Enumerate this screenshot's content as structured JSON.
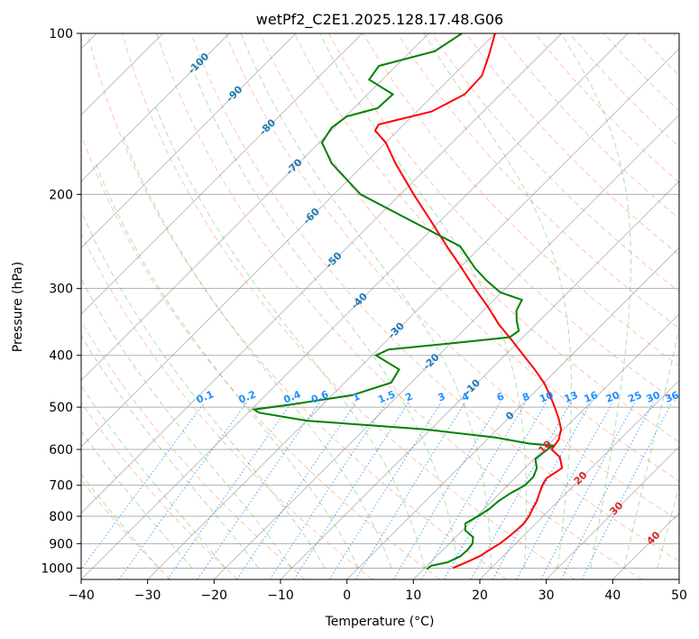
{
  "chart_data": {
    "type": "line",
    "subtype": "skew-t log-p diagram",
    "title": "wetPf2_C2E1.2025.128.17.48.G06",
    "xlabel": "Temperature (°C)",
    "ylabel": "Pressure (hPa)",
    "xlim": [
      -40,
      50
    ],
    "ylim": [
      1050,
      100
    ],
    "y_scale": "log",
    "x_ticks": [
      -40,
      -30,
      -20,
      -10,
      0,
      10,
      20,
      30,
      40,
      50
    ],
    "y_ticks": [
      100,
      200,
      300,
      400,
      500,
      600,
      700,
      800,
      900,
      1000
    ],
    "grid": true,
    "series": [
      {
        "role": "temperature",
        "color": "#ff0000",
        "points": [
          {
            "p": 1000,
            "t": 14.2
          },
          {
            "p": 975,
            "t": 15.4
          },
          {
            "p": 950,
            "t": 16.5
          },
          {
            "p": 925,
            "t": 17.0
          },
          {
            "p": 900,
            "t": 17.6
          },
          {
            "p": 875,
            "t": 17.9
          },
          {
            "p": 850,
            "t": 18.1
          },
          {
            "p": 825,
            "t": 18.2
          },
          {
            "p": 800,
            "t": 17.9
          },
          {
            "p": 775,
            "t": 17.3
          },
          {
            "p": 750,
            "t": 16.8
          },
          {
            "p": 725,
            "t": 16.0
          },
          {
            "p": 700,
            "t": 15.2
          },
          {
            "p": 680,
            "t": 14.8
          },
          {
            "p": 650,
            "t": 15.6
          },
          {
            "p": 620,
            "t": 13.6
          },
          {
            "p": 600,
            "t": 11.2
          },
          {
            "p": 575,
            "t": 10.8
          },
          {
            "p": 550,
            "t": 9.6
          },
          {
            "p": 525,
            "t": 7.6
          },
          {
            "p": 500,
            "t": 5.3
          },
          {
            "p": 475,
            "t": 2.8
          },
          {
            "p": 450,
            "t": 0.0
          },
          {
            "p": 425,
            "t": -3.4
          },
          {
            "p": 400,
            "t": -7.2
          },
          {
            "p": 375,
            "t": -11.2
          },
          {
            "p": 350,
            "t": -15.6
          },
          {
            "p": 325,
            "t": -19.8
          },
          {
            "p": 300,
            "t": -24.6
          },
          {
            "p": 275,
            "t": -29.6
          },
          {
            "p": 250,
            "t": -35.2
          },
          {
            "p": 225,
            "t": -41.2
          },
          {
            "p": 200,
            "t": -48.0
          },
          {
            "p": 175,
            "t": -55.4
          },
          {
            "p": 160,
            "t": -60.0
          },
          {
            "p": 152,
            "t": -63.4
          },
          {
            "p": 148,
            "t": -63.8
          },
          {
            "p": 140,
            "t": -57.8
          },
          {
            "p": 130,
            "t": -55.4
          },
          {
            "p": 120,
            "t": -55.6
          },
          {
            "p": 110,
            "t": -57.6
          },
          {
            "p": 100,
            "t": -60.0
          }
        ]
      },
      {
        "role": "dewpoint",
        "color": "#008000",
        "points": [
          {
            "p": 1005,
            "t": 10.5
          },
          {
            "p": 990,
            "t": 10.6
          },
          {
            "p": 975,
            "t": 12.6
          },
          {
            "p": 950,
            "t": 13.6
          },
          {
            "p": 925,
            "t": 13.7
          },
          {
            "p": 900,
            "t": 13.5
          },
          {
            "p": 875,
            "t": 12.6
          },
          {
            "p": 850,
            "t": 10.4
          },
          {
            "p": 825,
            "t": 9.4
          },
          {
            "p": 800,
            "t": 10.2
          },
          {
            "p": 775,
            "t": 10.8
          },
          {
            "p": 750,
            "t": 11.0
          },
          {
            "p": 725,
            "t": 11.6
          },
          {
            "p": 700,
            "t": 12.6
          },
          {
            "p": 675,
            "t": 12.6
          },
          {
            "p": 650,
            "t": 11.8
          },
          {
            "p": 625,
            "t": 10.2
          },
          {
            "p": 600,
            "t": 10.6
          },
          {
            "p": 590,
            "t": 10.8
          },
          {
            "p": 585,
            "t": 7.0
          },
          {
            "p": 570,
            "t": 1.0
          },
          {
            "p": 550,
            "t": -11.0
          },
          {
            "p": 530,
            "t": -30.0
          },
          {
            "p": 512,
            "t": -38.4
          },
          {
            "p": 505,
            "t": -39.6
          },
          {
            "p": 495,
            "t": -35.0
          },
          {
            "p": 475,
            "t": -27.0
          },
          {
            "p": 450,
            "t": -23.0
          },
          {
            "p": 425,
            "t": -23.8
          },
          {
            "p": 400,
            "t": -29.4
          },
          {
            "p": 390,
            "t": -28.4
          },
          {
            "p": 380,
            "t": -20.0
          },
          {
            "p": 370,
            "t": -12.0
          },
          {
            "p": 360,
            "t": -11.6
          },
          {
            "p": 345,
            "t": -13.4
          },
          {
            "p": 330,
            "t": -15.0
          },
          {
            "p": 315,
            "t": -15.8
          },
          {
            "p": 305,
            "t": -20.2
          },
          {
            "p": 290,
            "t": -24.0
          },
          {
            "p": 275,
            "t": -27.6
          },
          {
            "p": 250,
            "t": -33.2
          },
          {
            "p": 225,
            "t": -44.0
          },
          {
            "p": 200,
            "t": -56.0
          },
          {
            "p": 175,
            "t": -65.0
          },
          {
            "p": 160,
            "t": -69.6
          },
          {
            "p": 150,
            "t": -70.4
          },
          {
            "p": 143,
            "t": -69.8
          },
          {
            "p": 138,
            "t": -66.4
          },
          {
            "p": 130,
            "t": -66.2
          },
          {
            "p": 122,
            "t": -72.0
          },
          {
            "p": 115,
            "t": -72.6
          },
          {
            "p": 108,
            "t": -66.4
          },
          {
            "p": 100,
            "t": -65.0
          }
        ]
      }
    ],
    "background_lines": {
      "isotherms_skewed": {
        "color": "#808080",
        "values": [
          -120,
          -110,
          -100,
          -90,
          -80,
          -70,
          -60,
          -50,
          -40,
          -30,
          -20,
          -10,
          0,
          10,
          20,
          30,
          40,
          50
        ]
      },
      "dry_adiabats": {
        "color": "#ff7f50",
        "style": "dashed"
      },
      "moist_adiabats": {
        "color": "#2ca02c",
        "style": "dashed"
      },
      "mixing_ratio_lines": {
        "color": "#1e90ff",
        "style": "dotted"
      }
    },
    "annotations": {
      "isotherm_labels": {
        "color": "#1f77b4",
        "items": [
          {
            "text": "-100",
            "t": -100,
            "p": 114
          },
          {
            "text": "-90",
            "t": -90,
            "p": 130
          },
          {
            "text": "-80",
            "t": -80,
            "p": 150
          },
          {
            "text": "-70",
            "t": -70,
            "p": 178
          },
          {
            "text": "-60",
            "t": -60,
            "p": 220
          },
          {
            "text": "-50",
            "t": -50,
            "p": 266
          },
          {
            "text": "-40",
            "t": -40,
            "p": 317
          },
          {
            "text": "-30",
            "t": -30,
            "p": 360
          },
          {
            "text": "-20",
            "t": -20,
            "p": 412
          },
          {
            "text": "-10",
            "t": -10,
            "p": 460
          },
          {
            "text": "0",
            "t": 0,
            "p": 520
          }
        ]
      },
      "isotherm_labels_low": {
        "color": "#d62728",
        "items": [
          {
            "text": "10",
            "t": 10,
            "p": 595
          },
          {
            "text": "20",
            "t": 20,
            "p": 680
          },
          {
            "text": "30",
            "t": 30,
            "p": 775
          },
          {
            "text": "40",
            "t": 40,
            "p": 880
          }
        ]
      },
      "mixing_ratio_labels": {
        "color": "#1e90ff",
        "p": 485,
        "items": [
          "0.1",
          "0.2",
          "0.4",
          "0.6",
          "1",
          "1.5",
          "2",
          "3",
          "4",
          "6",
          "8",
          "10",
          "13",
          "16",
          "20",
          "25",
          "30",
          "36"
        ]
      }
    }
  }
}
